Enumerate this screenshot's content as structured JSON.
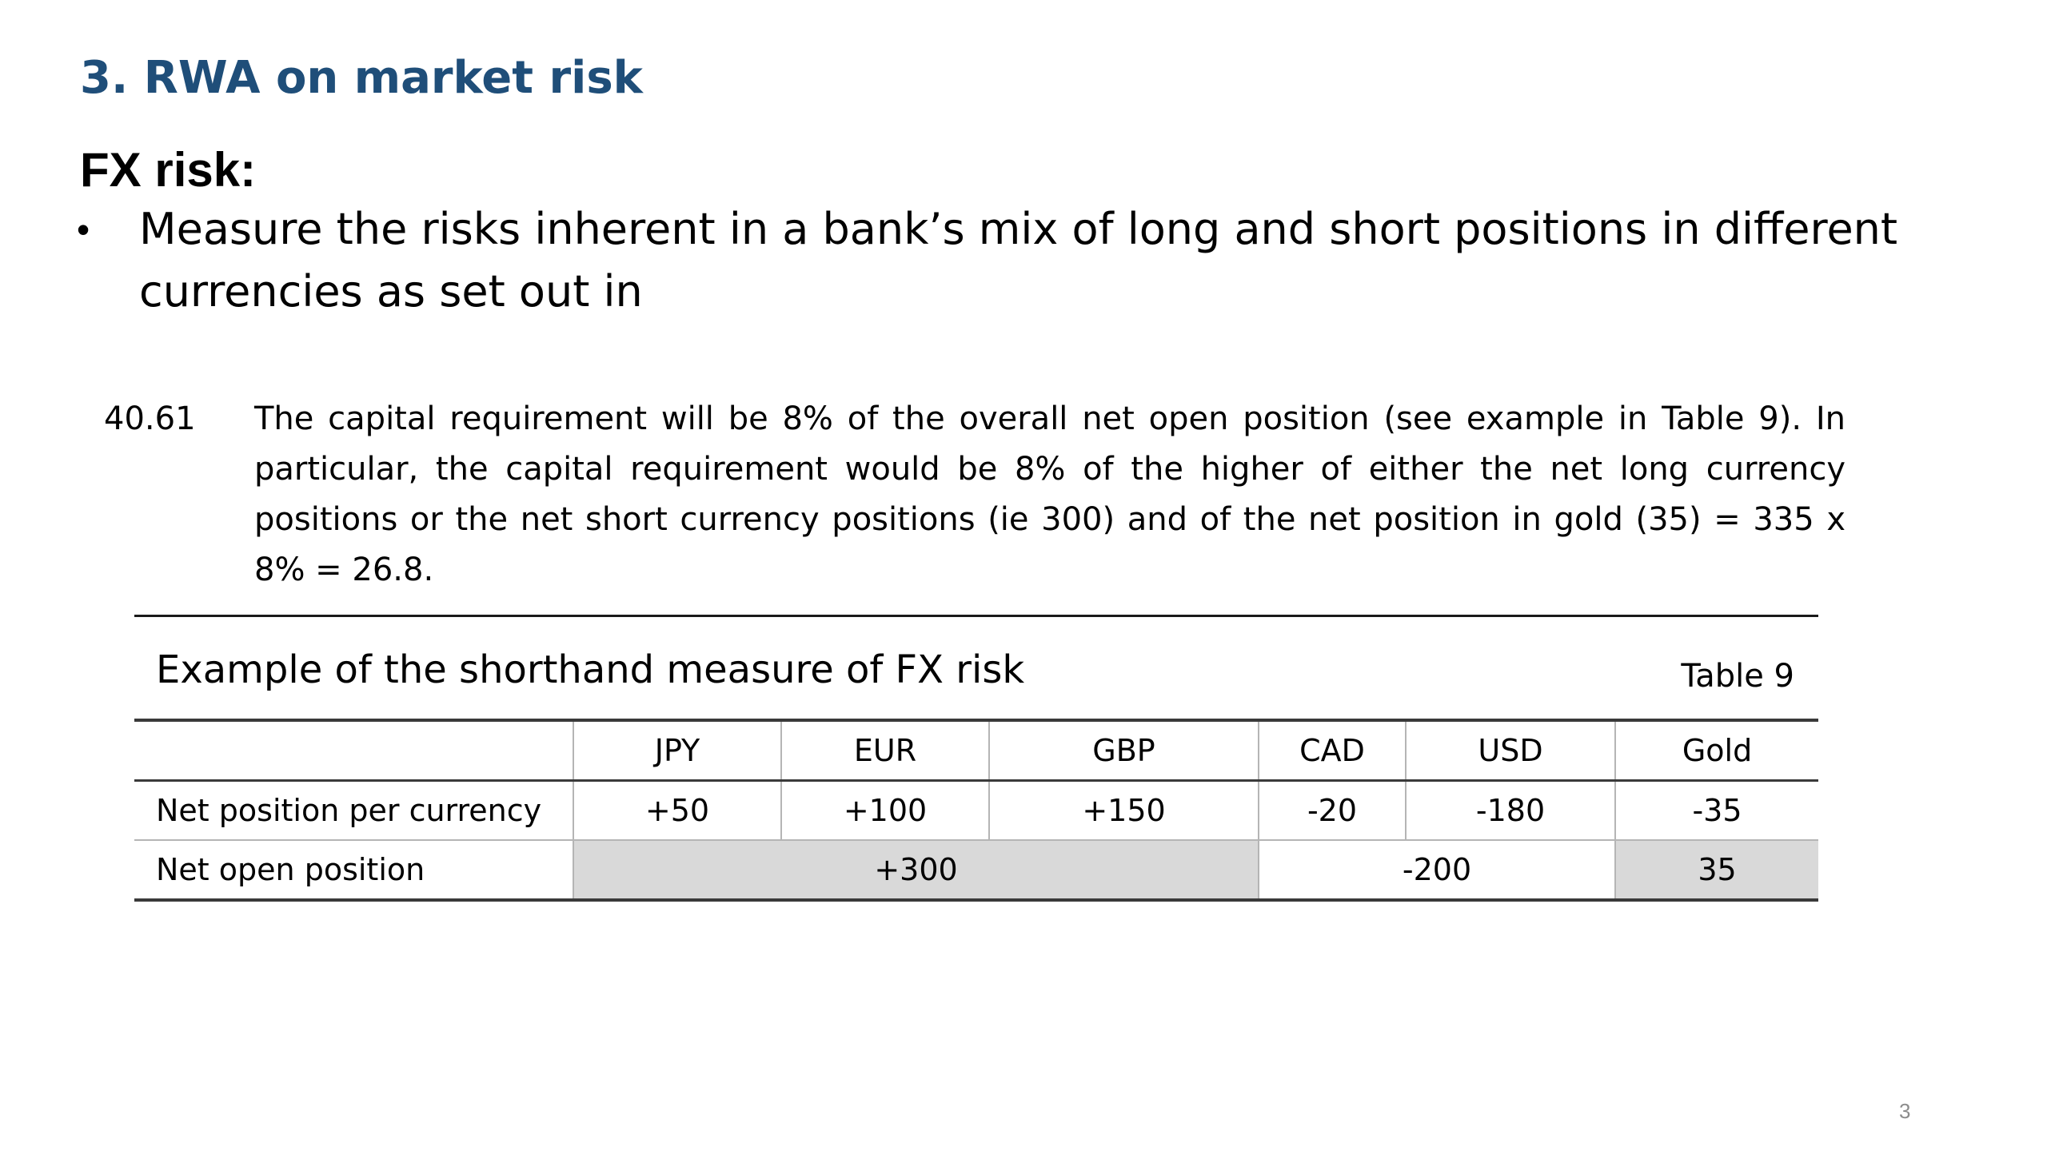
{
  "slide": {
    "title": "3. RWA on market risk",
    "title_color": "#1f4e79",
    "section_heading": "FX risk:",
    "bullet_symbol": "•",
    "bullet_text": "Measure the risks inherent in a bank’s mix of long and short positions in different currencies as set out in",
    "page_number": "3"
  },
  "excerpt": {
    "paragraph_number": "40.61",
    "paragraph_text": "The capital requirement will be 8% of the overall net open position (see example in Table 9). In particular, the capital requirement would be 8% of the higher of either the net long currency positions or the net short currency positions (ie 300) and of the net position in gold (35) = 335 x 8% = 26.8.",
    "table_caption": "Example of the shorthand measure of FX risk",
    "table_number": "Table 9",
    "table": {
      "headers": [
        "",
        "JPY",
        "EUR",
        "GBP",
        "CAD",
        "USD",
        "Gold"
      ],
      "net_position_row": {
        "label": "Net position per currency",
        "values": [
          "+50",
          "+100",
          "+150",
          "-20",
          "-180",
          "-35"
        ]
      },
      "net_open_row": {
        "label": "Net open position",
        "long_total": "+300",
        "short_total": "-200",
        "gold": "35"
      },
      "shade_color": "#d9d9d9"
    }
  }
}
